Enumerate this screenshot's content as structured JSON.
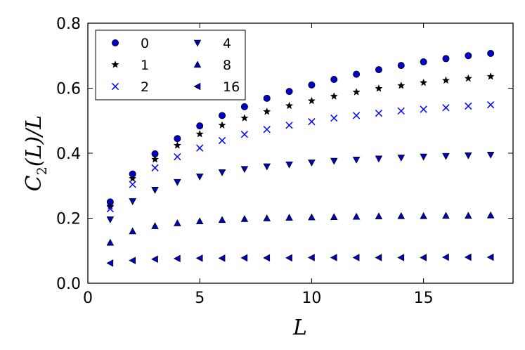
{
  "chart_data": {
    "type": "scatter",
    "xlabel": "L",
    "ylabel": "C2(L)/L",
    "xlim": [
      0,
      19
    ],
    "ylim": [
      0,
      0.8
    ],
    "xticks": [
      "0",
      "5",
      "10",
      "15"
    ],
    "yticks": [
      "0.0",
      "0.2",
      "0.4",
      "0.6",
      "0.8"
    ],
    "grid": false,
    "legend": "top-left, 2 columns",
    "x": [
      1,
      2,
      3,
      4,
      5,
      6,
      7,
      8,
      9,
      10,
      11,
      12,
      13,
      14,
      15,
      16,
      17,
      18
    ],
    "series": [
      {
        "name": "0",
        "marker": "circle",
        "color": "#0000cc",
        "values": [
          0.25,
          0.336,
          0.398,
          0.445,
          0.484,
          0.516,
          0.543,
          0.569,
          0.59,
          0.61,
          0.627,
          0.643,
          0.657,
          0.67,
          0.681,
          0.691,
          0.7,
          0.707
        ]
      },
      {
        "name": "1",
        "marker": "star",
        "color": "#000000",
        "values": [
          0.237,
          0.322,
          0.381,
          0.424,
          0.459,
          0.486,
          0.508,
          0.528,
          0.546,
          0.561,
          0.575,
          0.588,
          0.599,
          0.608,
          0.617,
          0.624,
          0.63,
          0.636
        ]
      },
      {
        "name": "2",
        "marker": "x",
        "color": "#0000ff",
        "values": [
          0.229,
          0.304,
          0.355,
          0.389,
          0.416,
          0.439,
          0.458,
          0.473,
          0.486,
          0.497,
          0.508,
          0.516,
          0.523,
          0.53,
          0.535,
          0.54,
          0.545,
          0.549
        ]
      },
      {
        "name": "4",
        "marker": "triangle-down",
        "color": "#0000cc",
        "values": [
          0.196,
          0.252,
          0.287,
          0.311,
          0.328,
          0.341,
          0.351,
          0.359,
          0.365,
          0.371,
          0.376,
          0.38,
          0.383,
          0.386,
          0.389,
          0.391,
          0.393,
          0.395
        ]
      },
      {
        "name": "8",
        "marker": "triangle-up",
        "color": "#0000cc",
        "values": [
          0.125,
          0.16,
          0.176,
          0.185,
          0.191,
          0.195,
          0.198,
          0.2,
          0.202,
          0.203,
          0.204,
          0.205,
          0.206,
          0.207,
          0.207,
          0.208,
          0.208,
          0.209
        ]
      },
      {
        "name": "16",
        "marker": "triangle-left",
        "color": "#0000cc",
        "values": [
          0.062,
          0.07,
          0.074,
          0.076,
          0.077,
          0.077,
          0.078,
          0.078,
          0.078,
          0.079,
          0.079,
          0.079,
          0.079,
          0.079,
          0.079,
          0.08,
          0.08,
          0.08
        ]
      }
    ]
  }
}
